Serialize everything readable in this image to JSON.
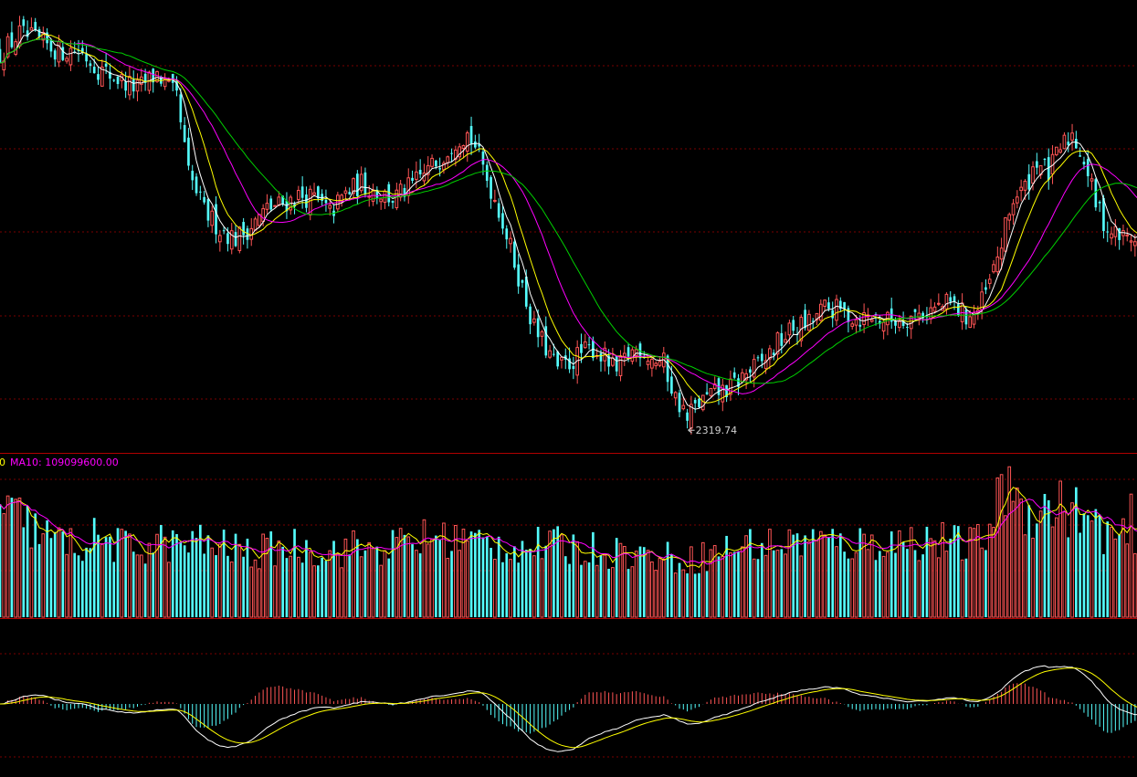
{
  "colors": {
    "background": "#000000",
    "up": "#FF5555",
    "down": "#54FCFC",
    "grid": "#7A0000",
    "separator": "#B00000",
    "ma_short": "#FFFFFF",
    "ma_mid": "#FFFF00",
    "ma_long1": "#FF00FF",
    "ma_long2": "#00D000",
    "vol_ma10": "#FF00FF",
    "vol_ma5": "#FFFF00",
    "macd_dif": "#FFFFFF",
    "macd_dea": "#FFFF00"
  },
  "price_panel": {
    "low_marker_label": "2319.74",
    "low_marker_value": 2319.74
  },
  "volume_panel": {
    "legend_fragment": "0",
    "ma10_label": "MA10: 109099600.00"
  },
  "chart_data": [
    {
      "type": "candlestick",
      "panel": "price",
      "anchors_index_close": [
        [
          0,
          3070
        ],
        [
          5,
          3110
        ],
        [
          10,
          3095
        ],
        [
          15,
          3075
        ],
        [
          20,
          3080
        ],
        [
          25,
          3040
        ],
        [
          30,
          3020
        ],
        [
          35,
          3000
        ],
        [
          40,
          3030
        ],
        [
          45,
          2980
        ],
        [
          48,
          2830
        ],
        [
          52,
          2755
        ],
        [
          56,
          2720
        ],
        [
          60,
          2700
        ],
        [
          64,
          2725
        ],
        [
          68,
          2760
        ],
        [
          72,
          2770
        ],
        [
          76,
          2785
        ],
        [
          80,
          2780
        ],
        [
          84,
          2750
        ],
        [
          88,
          2790
        ],
        [
          92,
          2810
        ],
        [
          96,
          2795
        ],
        [
          100,
          2780
        ],
        [
          104,
          2800
        ],
        [
          108,
          2830
        ],
        [
          112,
          2860
        ],
        [
          116,
          2900
        ],
        [
          119,
          2910
        ],
        [
          121,
          2885
        ],
        [
          124,
          2820
        ],
        [
          127,
          2760
        ],
        [
          130,
          2680
        ],
        [
          133,
          2600
        ],
        [
          136,
          2520
        ],
        [
          139,
          2480
        ],
        [
          142,
          2440
        ],
        [
          145,
          2450
        ],
        [
          148,
          2470
        ],
        [
          151,
          2480
        ],
        [
          154,
          2460
        ],
        [
          157,
          2430
        ],
        [
          160,
          2470
        ],
        [
          163,
          2480
        ],
        [
          166,
          2460
        ],
        [
          169,
          2450
        ],
        [
          172,
          2380
        ],
        [
          175,
          2345
        ],
        [
          178,
          2370
        ],
        [
          182,
          2390
        ],
        [
          186,
          2400
        ],
        [
          190,
          2430
        ],
        [
          194,
          2450
        ],
        [
          198,
          2490
        ],
        [
          202,
          2520
        ],
        [
          206,
          2530
        ],
        [
          210,
          2560
        ],
        [
          214,
          2555
        ],
        [
          218,
          2540
        ],
        [
          222,
          2545
        ],
        [
          226,
          2535
        ],
        [
          230,
          2540
        ],
        [
          234,
          2550
        ],
        [
          238,
          2560
        ],
        [
          242,
          2570
        ],
        [
          246,
          2545
        ],
        [
          249,
          2555
        ],
        [
          252,
          2610
        ],
        [
          255,
          2690
        ],
        [
          258,
          2780
        ],
        [
          261,
          2800
        ],
        [
          264,
          2860
        ],
        [
          267,
          2830
        ],
        [
          270,
          2880
        ],
        [
          273,
          2910
        ],
        [
          276,
          2860
        ],
        [
          279,
          2770
        ],
        [
          282,
          2720
        ],
        [
          285,
          2705
        ],
        [
          288,
          2700
        ],
        [
          291,
          2715
        ]
      ],
      "ma_periods": [
        5,
        10,
        20,
        30
      ],
      "low_marker": 2319.74
    },
    {
      "type": "bar",
      "panel": "volume",
      "anchors_index_volume": [
        [
          0,
          152000000.0
        ],
        [
          5,
          145000000.0
        ],
        [
          10,
          125000000.0
        ],
        [
          15,
          110000000.0
        ],
        [
          20,
          106000000.0
        ],
        [
          25,
          118000000.0
        ],
        [
          30,
          105000000.0
        ],
        [
          35,
          100000000.0
        ],
        [
          40,
          112000000.0
        ],
        [
          45,
          105000000.0
        ],
        [
          50,
          110000000.0
        ],
        [
          55,
          105000000.0
        ],
        [
          60,
          100000000.0
        ],
        [
          65,
          92000000.0
        ],
        [
          70,
          102000000.0
        ],
        [
          75,
          105000000.0
        ],
        [
          80,
          100000000.0
        ],
        [
          85,
          98000000.0
        ],
        [
          90,
          102000000.0
        ],
        [
          95,
          100000000.0
        ],
        [
          100,
          105000000.0
        ],
        [
          105,
          110000000.0
        ],
        [
          110,
          118000000.0
        ],
        [
          115,
          115000000.0
        ],
        [
          120,
          112000000.0
        ],
        [
          125,
          108000000.0
        ],
        [
          130,
          105000000.0
        ],
        [
          135,
          104000000.0
        ],
        [
          140,
          106000000.0
        ],
        [
          145,
          103000000.0
        ],
        [
          150,
          100000000.0
        ],
        [
          155,
          98000000.0
        ],
        [
          160,
          95000000.0
        ],
        [
          165,
          90000000.0
        ],
        [
          170,
          88000000.0
        ],
        [
          175,
          85000000.0
        ],
        [
          180,
          90000000.0
        ],
        [
          185,
          100000000.0
        ],
        [
          190,
          108000000.0
        ],
        [
          195,
          105000000.0
        ],
        [
          200,
          108000000.0
        ],
        [
          205,
          115000000.0
        ],
        [
          210,
          110000000.0
        ],
        [
          215,
          107000000.0
        ],
        [
          220,
          108000000.0
        ],
        [
          225,
          112000000.0
        ],
        [
          230,
          110000000.0
        ],
        [
          235,
          115000000.0
        ],
        [
          240,
          112000000.0
        ],
        [
          245,
          105000000.0
        ],
        [
          250,
          110000000.0
        ],
        [
          253,
          150000000.0
        ],
        [
          256,
          190000000.0
        ],
        [
          259,
          170000000.0
        ],
        [
          262,
          160000000.0
        ],
        [
          265,
          155000000.0
        ],
        [
          268,
          165000000.0
        ],
        [
          271,
          160000000.0
        ],
        [
          274,
          155000000.0
        ],
        [
          277,
          140000000.0
        ],
        [
          280,
          130000000.0
        ],
        [
          285,
          115000000.0
        ],
        [
          291,
          105000000.0
        ]
      ],
      "ylim": [
        0,
        235000000.0
      ],
      "ma_periods": [
        5,
        10
      ],
      "ma10_last": 109099600.0
    },
    {
      "type": "macd",
      "panel": "macd",
      "derived_from": "price close",
      "params": [
        12,
        26,
        9
      ]
    }
  ]
}
